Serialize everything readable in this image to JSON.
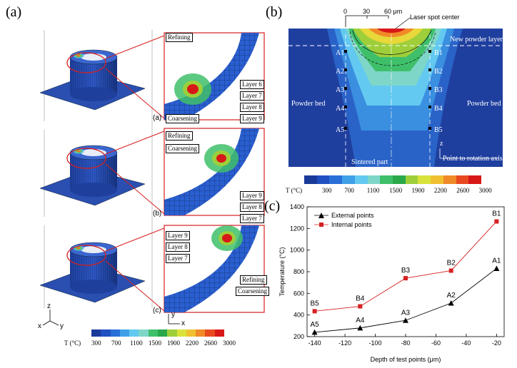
{
  "panel_labels": {
    "a": "(a)",
    "b": "(b)",
    "c": "(c)"
  },
  "panel_a": {
    "subplots": [
      "(a)",
      "(b)",
      "(c)"
    ],
    "row1_labels": [
      "Refining",
      "Layer 6",
      "Layer 7",
      "Layer 8",
      "Layer 9",
      "Coarsening"
    ],
    "row2_labels": [
      "Refining",
      "Coarsening",
      "Layer 9",
      "Layer 8",
      "Layer 7"
    ],
    "row3_labels": [
      "Layer 9",
      "Layer 8",
      "Layer 7",
      "Refining",
      "Coarsening"
    ],
    "axes": {
      "z": "z",
      "x": "x",
      "y": "y"
    },
    "inset_axes": {
      "y": "y",
      "x": "x"
    }
  },
  "colorbar": {
    "unit_label": "T (°C)",
    "ticks": [
      "300",
      "700",
      "1100",
      "1500",
      "1900",
      "2200",
      "2600",
      "3000"
    ],
    "colors": [
      "#1a3a9a",
      "#1f4fc0",
      "#2a6fd8",
      "#3fa0e8",
      "#63c9f0",
      "#7ed6c8",
      "#3fbf6a",
      "#2aa84a",
      "#9ecf3a",
      "#d9e23a",
      "#f0c030",
      "#f08a28",
      "#e84a20",
      "#d81818"
    ]
  },
  "panel_b": {
    "scale_ticks": [
      "0",
      "30",
      "60 μm"
    ],
    "laser_label": "Laser spot center",
    "powder_layer": "New powder layer",
    "powder_bed_left": "Powder bed",
    "powder_bed_right": "Powder bed",
    "sintered": "Sintered part",
    "rotation": "Point to rotation axis",
    "z_axis": "z",
    "left_points": [
      "A1",
      "A2",
      "A3",
      "A4",
      "A5"
    ],
    "right_points": [
      "B1",
      "B2",
      "B3",
      "B4",
      "B5"
    ]
  },
  "chart_data": {
    "type": "line",
    "x": [
      -140,
      -110,
      -80,
      -50,
      -20
    ],
    "xlim": [
      -145,
      -15
    ],
    "ylim": [
      200,
      1400
    ],
    "xticks": [
      -140,
      -120,
      -100,
      -80,
      -60,
      -40,
      -20
    ],
    "yticks": [
      200,
      400,
      600,
      800,
      1000,
      1200,
      1400
    ],
    "xlabel": "Depth of test points (μm)",
    "ylabel": "Temperature (°C)",
    "legend_position": "top-left",
    "series": [
      {
        "name": "External points",
        "color": "#000000",
        "marker": "triangle",
        "values": [
          240,
          280,
          350,
          510,
          830
        ],
        "point_labels": [
          "A5",
          "A4",
          "A3",
          "A2",
          "A1"
        ]
      },
      {
        "name": "Internal points",
        "color": "#d62020",
        "marker": "square",
        "values": [
          435,
          480,
          740,
          810,
          1265
        ],
        "point_labels": [
          "B5",
          "B4",
          "B3",
          "B2",
          "B1"
        ]
      }
    ]
  }
}
